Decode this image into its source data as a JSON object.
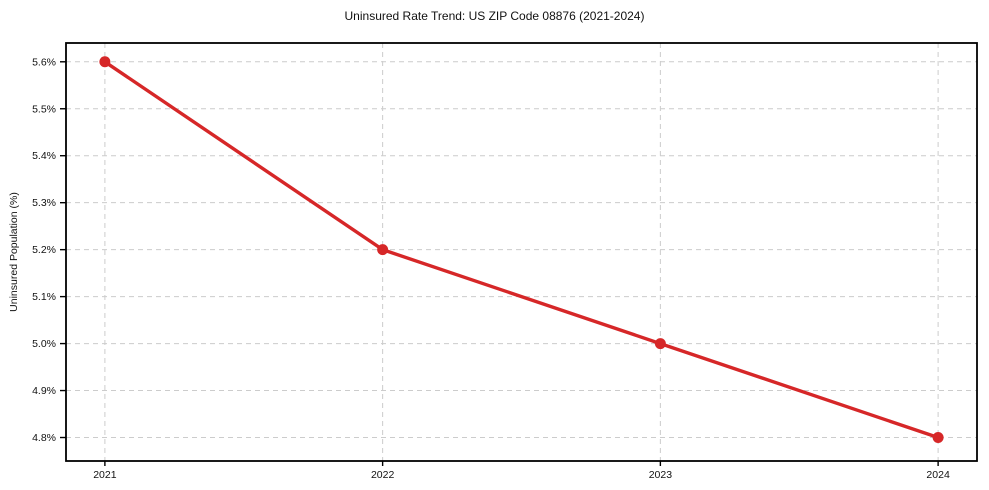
{
  "chart_data": {
    "type": "line",
    "title": "Uninsured Rate Trend: US ZIP Code 08876 (2021-2024)",
    "xlabel": "",
    "ylabel": "Uninsured Population (%)",
    "x": [
      2021,
      2022,
      2023,
      2024
    ],
    "values": [
      5.6,
      5.2,
      5.0,
      4.8
    ],
    "xticks": [
      2021,
      2022,
      2023,
      2024
    ],
    "xtick_labels": [
      "2021",
      "2022",
      "2023",
      "2024"
    ],
    "yticks": [
      4.8,
      4.9,
      5.0,
      5.1,
      5.2,
      5.3,
      5.4,
      5.5,
      5.6
    ],
    "ytick_labels": [
      "4.8%",
      "4.9%",
      "5.0%",
      "5.1%",
      "5.2%",
      "5.3%",
      "5.4%",
      "5.5%",
      "5.6%"
    ],
    "xlim": [
      2020.86,
      2024.14
    ],
    "ylim": [
      4.75,
      5.64
    ],
    "grid": true,
    "grid_style": "dashed",
    "legend": "none",
    "line_color": "#d62728",
    "marker_color": "#d62728",
    "grid_color": "#cccccc",
    "axis_color": "#000000",
    "text_color": "#111111",
    "background_color": "#ffffff"
  }
}
